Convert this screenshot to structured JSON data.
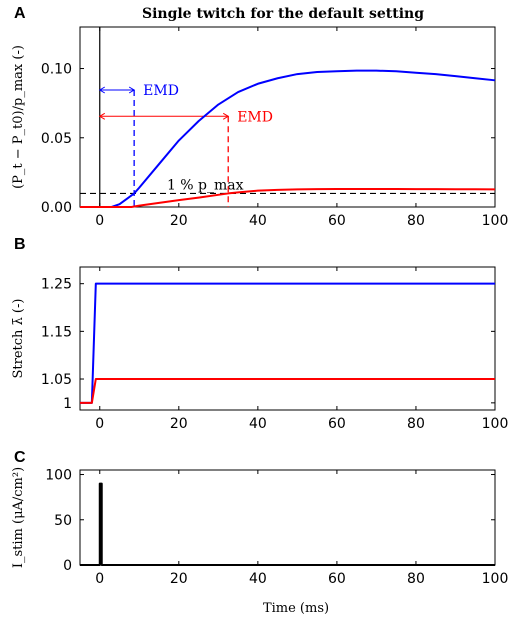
{
  "title": "Single twitch for the default setting",
  "xlabel": "Time (ms)",
  "colors": {
    "blue": "#0000ff",
    "red": "#ff0000",
    "black": "#000000"
  },
  "chart_data": [
    {
      "type": "line",
      "panel": "A",
      "title": "Single twitch for the default setting",
      "ylabel": "(P_t − P_t0)/p_max (-)",
      "xlim": [
        -5,
        100
      ],
      "ylim": [
        0,
        0.13
      ],
      "xticks": [
        0,
        20,
        40,
        60,
        80,
        100
      ],
      "yticks": [
        0.0,
        0.05,
        0.1
      ],
      "ytick_labels": [
        "0.00",
        "0.05",
        "0.10"
      ],
      "threshold": {
        "y": 0.0098,
        "label": "1 % p_max",
        "style": "dashed",
        "color": "#000000"
      },
      "stimulus_marker_x": 0,
      "annotations": [
        {
          "label": "EMD",
          "from_x": 0,
          "to_x": 8.7,
          "y": 0.0845,
          "color": "#0000ff"
        },
        {
          "label": "EMD",
          "from_x": 0,
          "to_x": 32.5,
          "y": 0.0655,
          "color": "#ff0000"
        }
      ],
      "series": [
        {
          "color": "#0000ff",
          "x": [
            -5,
            3,
            5,
            8.7,
            10,
            15,
            20,
            25,
            30,
            35,
            40,
            45,
            50,
            55,
            60,
            65,
            70,
            75,
            80,
            85,
            90,
            95,
            100
          ],
          "y": [
            0,
            0,
            0.002,
            0.0098,
            0.014,
            0.031,
            0.048,
            0.062,
            0.074,
            0.083,
            0.089,
            0.093,
            0.096,
            0.0975,
            0.098,
            0.0985,
            0.0985,
            0.098,
            0.097,
            0.096,
            0.0945,
            0.093,
            0.0915
          ]
        },
        {
          "color": "#ff0000",
          "x": [
            -5,
            8,
            10,
            15,
            20,
            25,
            30,
            32.5,
            35,
            40,
            45,
            50,
            55,
            60,
            65,
            70,
            75,
            80,
            85,
            90,
            95,
            100
          ],
          "y": [
            0,
            0,
            0.001,
            0.003,
            0.005,
            0.0068,
            0.0088,
            0.0098,
            0.0106,
            0.0118,
            0.0124,
            0.0127,
            0.0129,
            0.013,
            0.013,
            0.013,
            0.013,
            0.0129,
            0.0129,
            0.0128,
            0.0128,
            0.0127
          ]
        }
      ]
    },
    {
      "type": "line",
      "panel": "B",
      "ylabel": "Stretch λ̄ (-)",
      "xlim": [
        -5,
        100
      ],
      "ylim": [
        0.985,
        1.285
      ],
      "xticks": [
        0,
        20,
        40,
        60,
        80,
        100
      ],
      "yticks": [
        1,
        1.05,
        1.15,
        1.25
      ],
      "ytick_labels": [
        "1",
        "1.05",
        "1.15",
        "1.25"
      ],
      "series": [
        {
          "color": "#0000ff",
          "x": [
            -5,
            -2,
            -1,
            100
          ],
          "y": [
            1,
            1,
            1.25,
            1.25
          ]
        },
        {
          "color": "#ff0000",
          "x": [
            -5,
            -2,
            -1,
            100
          ],
          "y": [
            1,
            1,
            1.05,
            1.05
          ]
        }
      ]
    },
    {
      "type": "line",
      "panel": "C",
      "ylabel": "I_stim (μA/cm²)",
      "xlabel": "Time (ms)",
      "xlim": [
        -5,
        100
      ],
      "ylim": [
        0,
        105
      ],
      "xticks": [
        0,
        20,
        40,
        60,
        80,
        100
      ],
      "yticks": [
        0,
        50,
        100
      ],
      "ytick_labels": [
        "0",
        "50",
        "100"
      ],
      "series": [
        {
          "color": "#000000",
          "x": [
            -5,
            0,
            0,
            0.5,
            0.5,
            100
          ],
          "y": [
            0,
            0,
            90,
            90,
            0,
            0
          ]
        }
      ]
    }
  ]
}
